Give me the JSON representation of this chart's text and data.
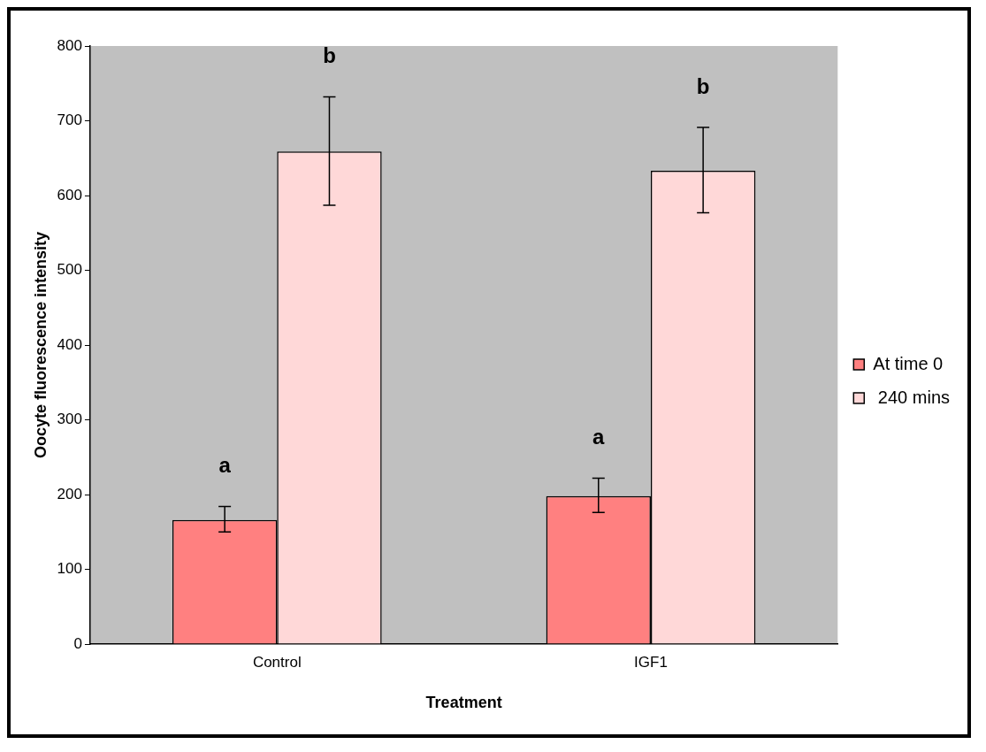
{
  "chart_data": {
    "type": "bar",
    "xlabel": "Treatment",
    "ylabel": "Oocyte fluorescence intensity",
    "categories": [
      "Control",
      "IGF1"
    ],
    "series": [
      {
        "name": "At time 0",
        "color": "#ff8080",
        "values": [
          166,
          198
        ],
        "errors": [
          [
            150,
            184
          ],
          [
            176,
            222
          ]
        ]
      },
      {
        "name": " 240 mins",
        "color": "#ffd8d8",
        "values": [
          659,
          633
        ],
        "errors": [
          [
            587,
            732
          ],
          [
            577,
            691
          ]
        ]
      }
    ],
    "ylim": [
      0,
      800
    ],
    "yticks": [
      0,
      100,
      200,
      300,
      400,
      500,
      600,
      700,
      800
    ],
    "grid": false,
    "legend": "right",
    "annotations": [
      "a",
      "b",
      "a",
      "b"
    ]
  }
}
